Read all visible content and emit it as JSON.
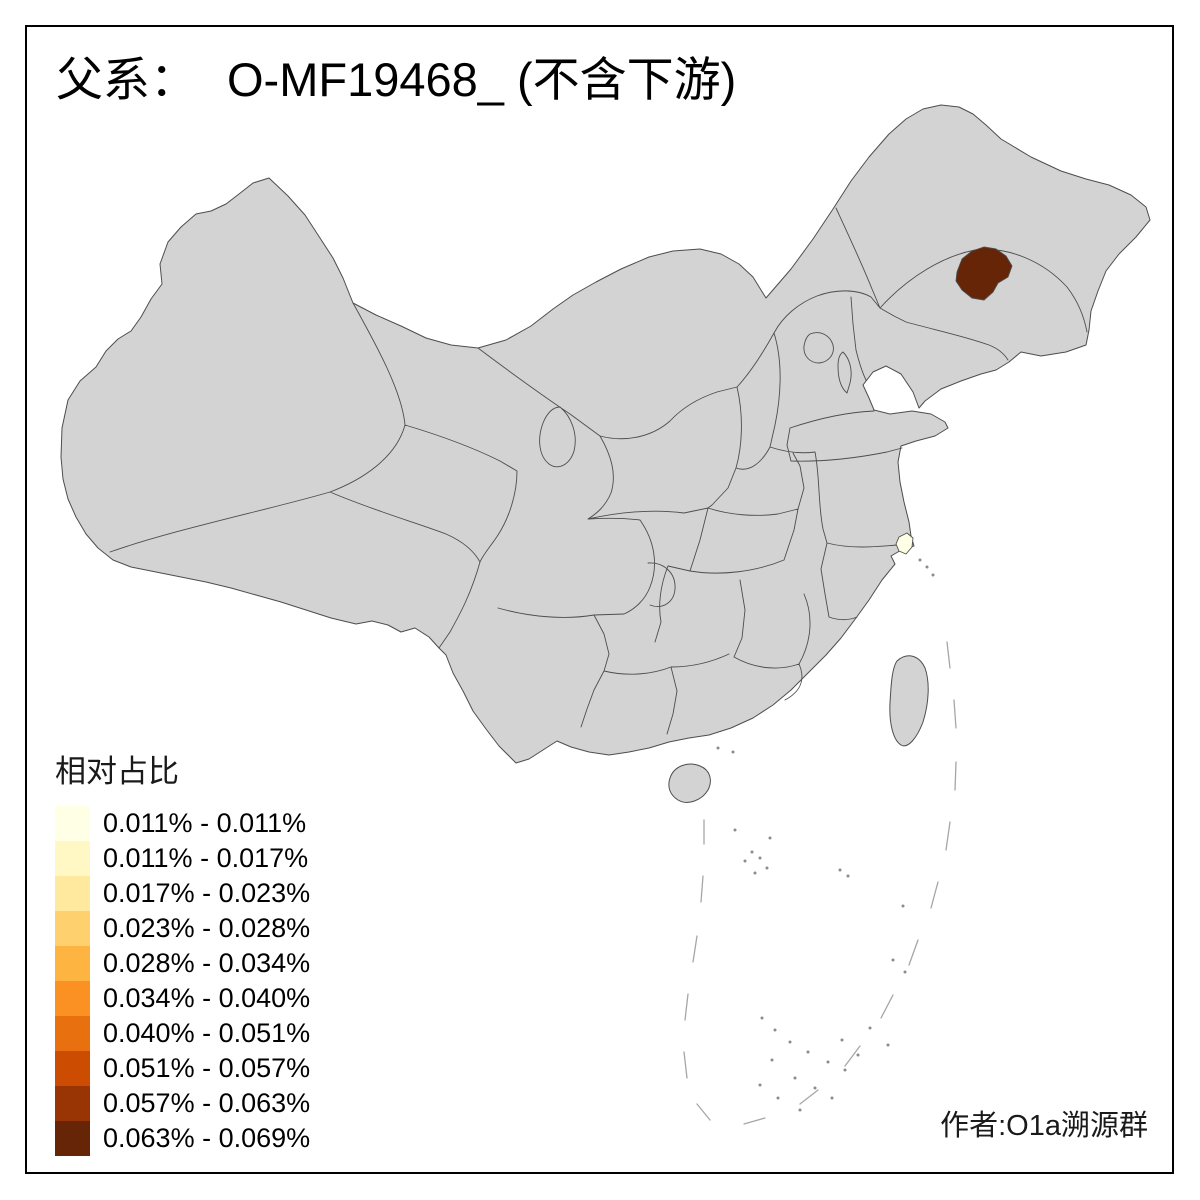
{
  "title": {
    "prefix": "父系：",
    "haplogroup": "O-MF19468_",
    "suffix": " (不含下游)"
  },
  "legend": {
    "title": "相对占比",
    "items": [
      {
        "label": "0.011% - 0.011%",
        "color": "#FFFFE5"
      },
      {
        "label": "0.011% - 0.017%",
        "color": "#FFF8C5"
      },
      {
        "label": "0.017% - 0.023%",
        "color": "#FEE99E"
      },
      {
        "label": "0.023% - 0.028%",
        "color": "#FED16E"
      },
      {
        "label": "0.028% - 0.034%",
        "color": "#FEB441"
      },
      {
        "label": "0.034% - 0.040%",
        "color": "#FB9122"
      },
      {
        "label": "0.040% - 0.051%",
        "color": "#E9700E"
      },
      {
        "label": "0.051% - 0.057%",
        "color": "#CC4C02"
      },
      {
        "label": "0.057% - 0.063%",
        "color": "#993404"
      },
      {
        "label": "0.063% - 0.069%",
        "color": "#662506"
      }
    ]
  },
  "author": "作者:O1a溯源群",
  "map": {
    "base_fill": "#D3D3D3",
    "border_color": "#4D4D4D",
    "highlights": [
      {
        "name": "northeast-region",
        "color": "#662506"
      },
      {
        "name": "shanghai-region",
        "color": "#FFFFE5"
      }
    ]
  }
}
